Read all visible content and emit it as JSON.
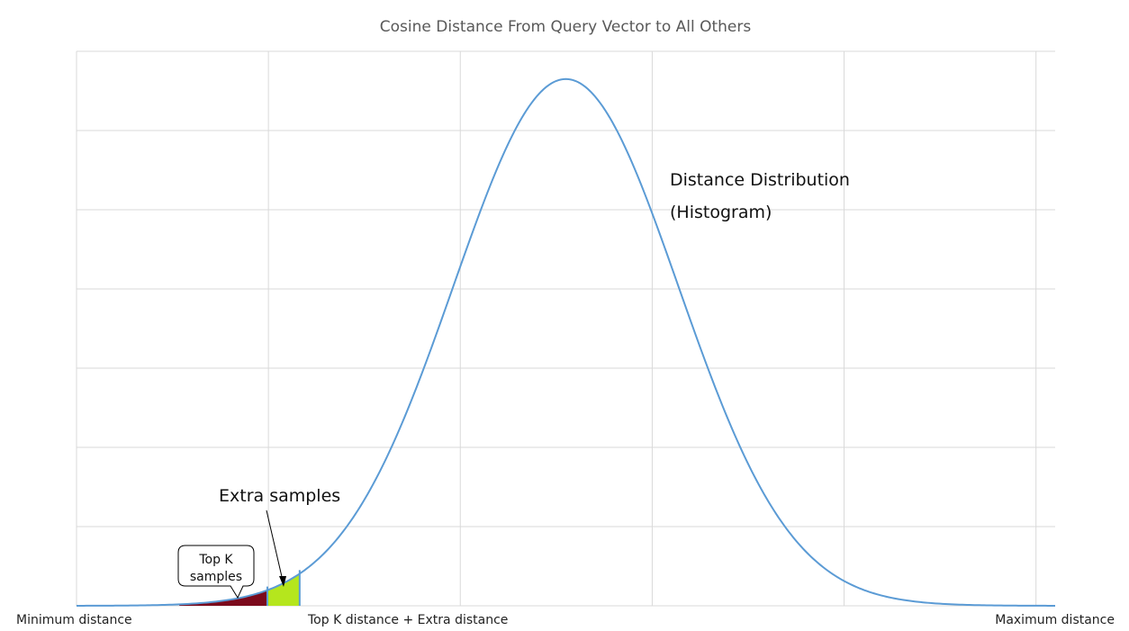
{
  "chart_data": {
    "type": "area",
    "title": "Cosine Distance From Query Vector to All Others",
    "xlabel": "",
    "ylabel": "",
    "grid": true,
    "legend": "none",
    "x_tick_labels": {
      "left": "Minimum distance",
      "middle": "Top K distance + Extra distance",
      "right": "Maximum distance"
    },
    "xlim": [
      0,
      100
    ],
    "ylim": [
      0,
      7
    ],
    "series": [
      {
        "name": "Distance Distribution (Histogram)",
        "distribution": "normal",
        "mean": 50,
        "std": 11.5,
        "peak": 6.65,
        "color": "#5B9BD5"
      }
    ],
    "regions": [
      {
        "label": "Top K samples",
        "x_start": 10.5,
        "x_end": 19.5,
        "color": "#7B0A1C"
      },
      {
        "label": "Extra samples",
        "x_start": 19.5,
        "x_end": 22.8,
        "color": "#B5E61D"
      }
    ],
    "annotations": {
      "distribution_line1": "Distance Distribution",
      "distribution_line2": "(Histogram)",
      "extra_samples": "Extra samples",
      "topk_line1": "Top K",
      "topk_line2": "samples"
    }
  }
}
